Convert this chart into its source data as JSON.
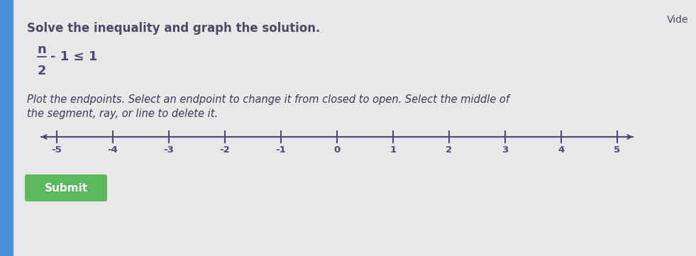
{
  "bg_color": "#e8e8e8",
  "left_stripe_color": "#4a90d9",
  "title": "Solve the inequality and graph the solution.",
  "title_fontsize": 12,
  "title_color": "#4a4a6a",
  "instruction": "Plot the endpoints. Select an endpoint to change it from closed to open. Select the middle of\nthe segment, ray, or line to delete it.",
  "instruction_fontsize": 10.5,
  "instruction_color": "#3a3a5a",
  "numberline_ticks": [
    -5,
    -4,
    -3,
    -2,
    -1,
    0,
    1,
    2,
    3,
    4,
    5
  ],
  "numberline_color": "#4a4a7a",
  "submit_text": "Submit",
  "submit_bg": "#5cb85c",
  "submit_text_color": "#ffffff",
  "vide_text": "Vide",
  "vide_color": "#4a4a6a",
  "math_color": "#4a4a7a"
}
